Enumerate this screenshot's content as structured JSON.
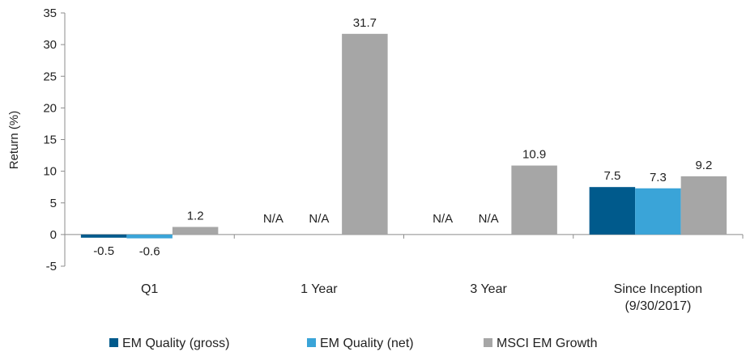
{
  "chart_data": {
    "type": "bar",
    "title": "",
    "xlabel": "",
    "ylabel": "Return (%)",
    "ylim": [
      -5,
      35
    ],
    "yticks": [
      -5,
      0,
      5,
      10,
      15,
      20,
      25,
      30,
      35
    ],
    "grid": false,
    "legend_position": "bottom",
    "categories": [
      [
        "Q1"
      ],
      [
        "1 Year"
      ],
      [
        "3 Year"
      ],
      [
        "Since Inception",
        "(9/30/2017)"
      ]
    ],
    "series": [
      {
        "name": "EM Quality (gross)",
        "color": "#005a8c",
        "values": [
          -0.5,
          null,
          null,
          7.5
        ],
        "labels": [
          "-0.5",
          "N/A",
          "N/A",
          "7.5"
        ]
      },
      {
        "name": "EM Quality (net)",
        "color": "#3aa4d8",
        "values": [
          -0.6,
          null,
          null,
          7.3
        ],
        "labels": [
          "-0.6",
          "N/A",
          "N/A",
          "7.3"
        ]
      },
      {
        "name": "MSCI EM Growth",
        "color": "#a6a6a6",
        "values": [
          1.2,
          31.7,
          10.9,
          9.2
        ],
        "labels": [
          "1.2",
          "31.7",
          "10.9",
          "9.2"
        ]
      }
    ]
  }
}
